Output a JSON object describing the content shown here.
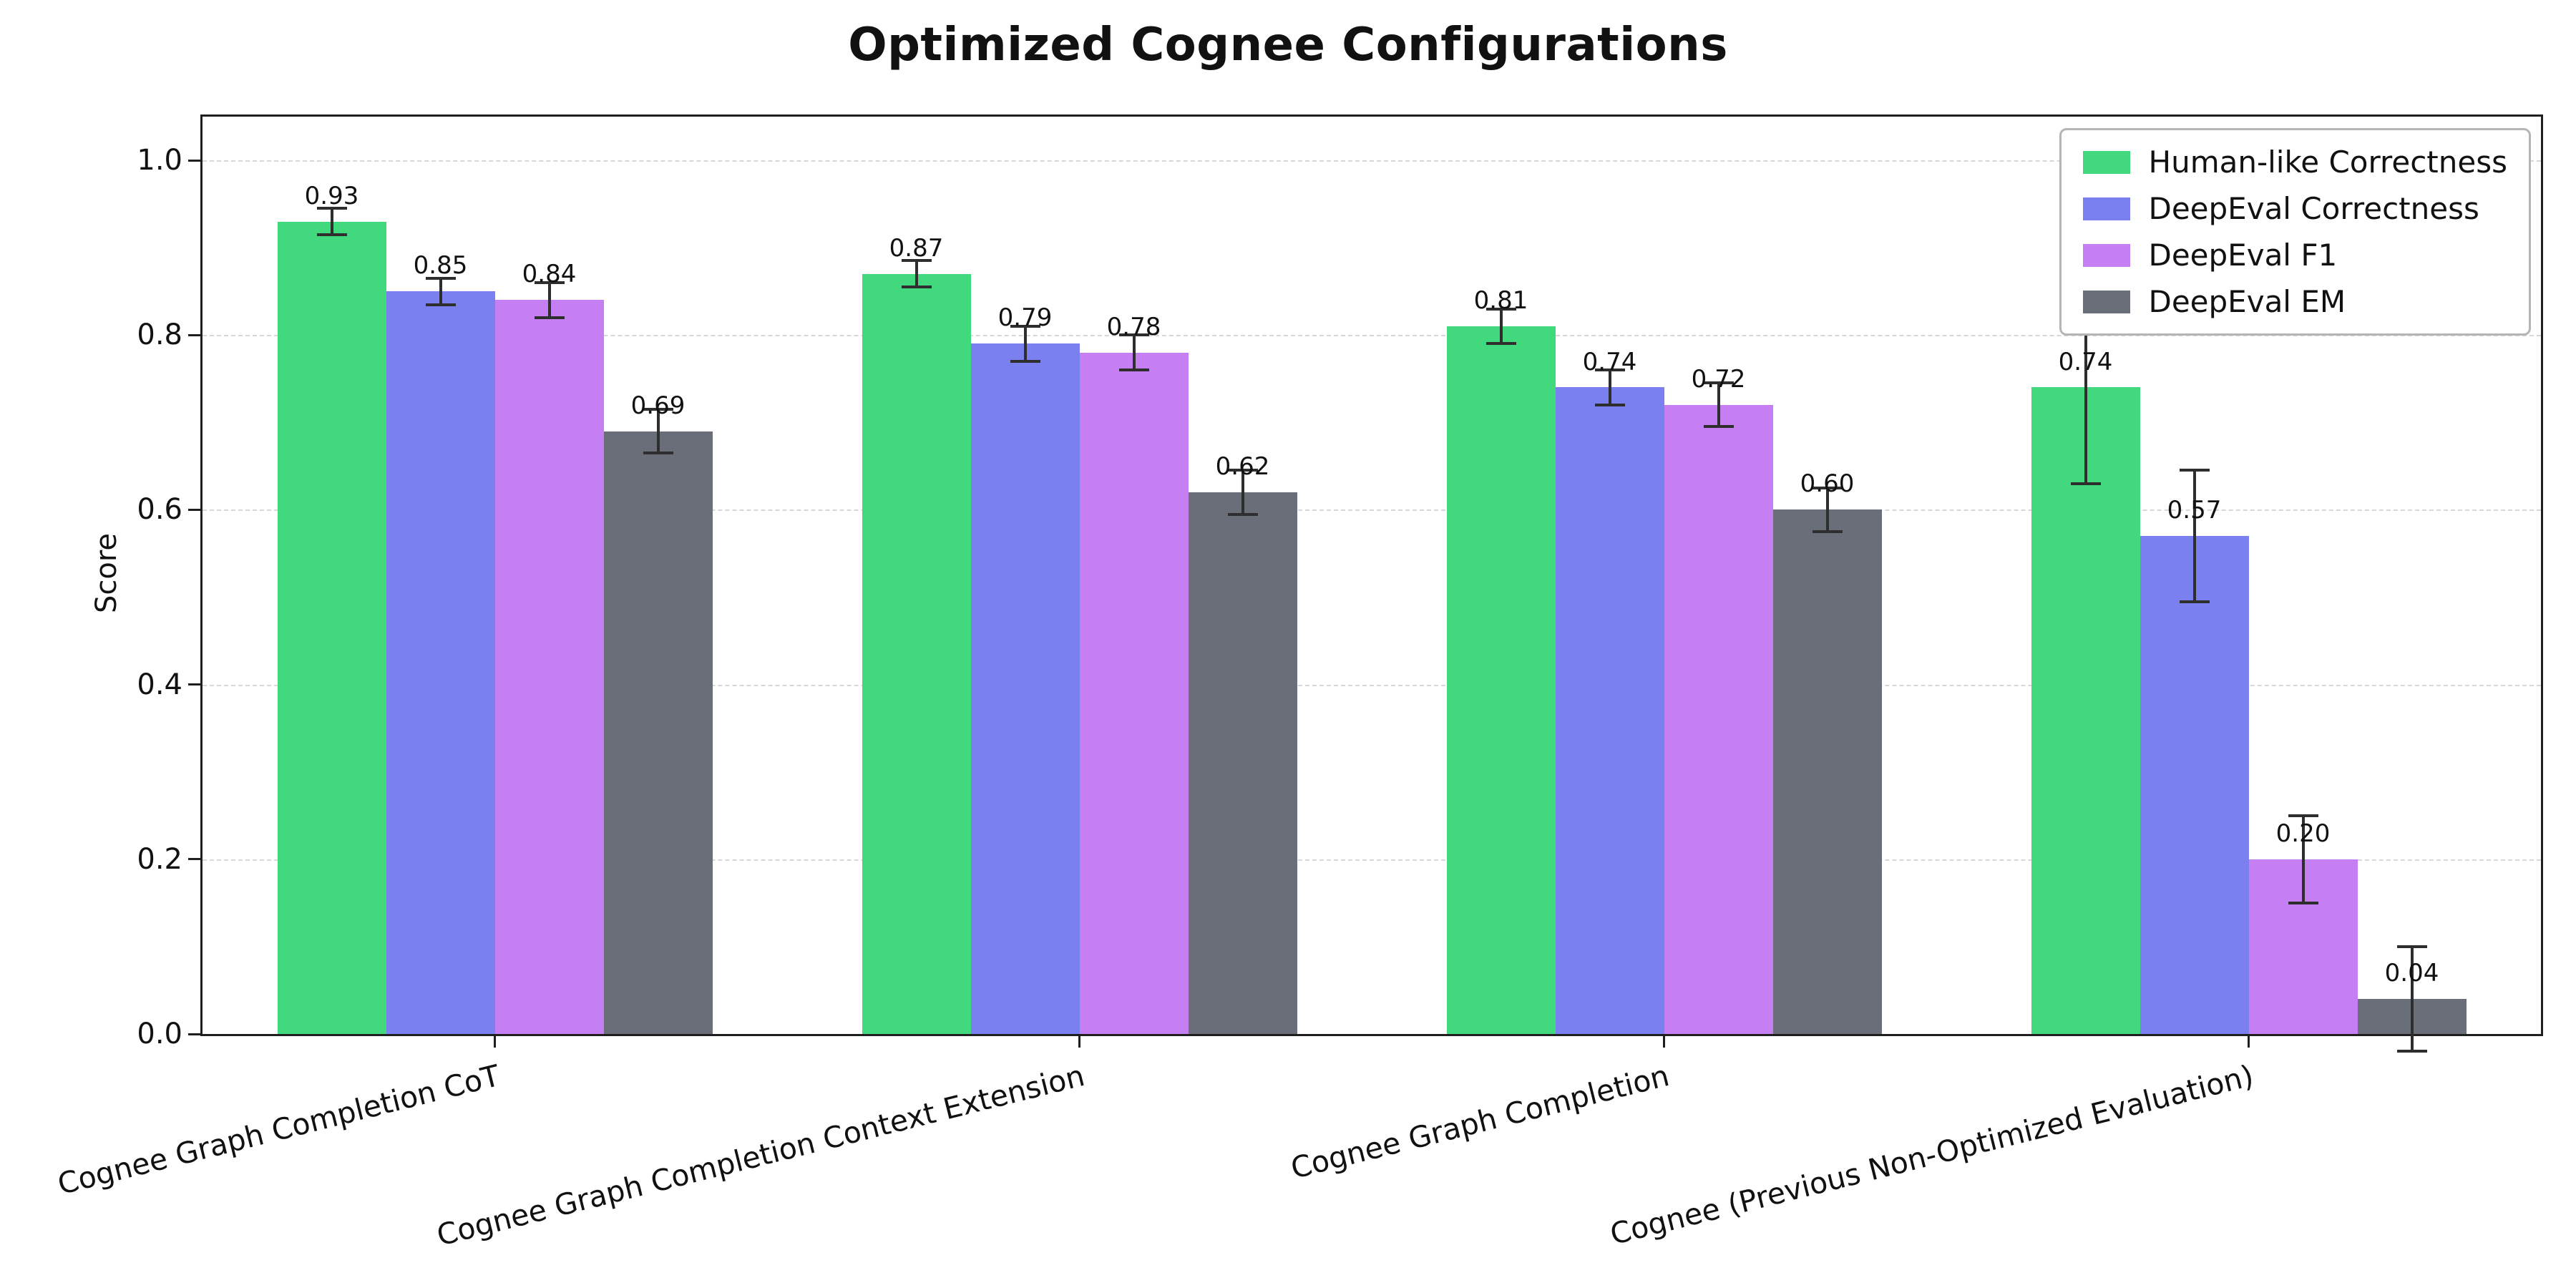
{
  "chart_data": {
    "type": "bar",
    "title": "Optimized Cognee Configurations",
    "ylabel": "Score",
    "xlabel": "",
    "ylim": [
      0,
      1.05
    ],
    "yticks": [
      0.0,
      0.2,
      0.4,
      0.6,
      0.8,
      1.0
    ],
    "grid": "dashed-horizontal",
    "legend_position": "upper-right",
    "error_bar_color": "#2e2e2e",
    "value_label_decimals": 2,
    "categories": [
      "Cognee Graph Completion CoT",
      "Cognee Graph Completion Context Extension",
      "Cognee Graph Completion",
      "Cognee (Previous Non-Optimized Evaluation)"
    ],
    "series": [
      {
        "name": "Human-like Correctness",
        "color": "#42d97e",
        "values": [
          0.93,
          0.87,
          0.81,
          0.74
        ],
        "errors": [
          0.015,
          0.015,
          0.02,
          0.11
        ]
      },
      {
        "name": "DeepEval Correctness",
        "color": "#7b80f0",
        "values": [
          0.85,
          0.79,
          0.74,
          0.57
        ],
        "errors": [
          0.015,
          0.02,
          0.02,
          0.075
        ]
      },
      {
        "name": "DeepEval F1",
        "color": "#c67ff2",
        "values": [
          0.84,
          0.78,
          0.72,
          0.2
        ],
        "errors": [
          0.02,
          0.02,
          0.025,
          0.05
        ]
      },
      {
        "name": "DeepEval EM",
        "color": "#6a6e78",
        "values": [
          0.69,
          0.62,
          0.6,
          0.04
        ],
        "errors": [
          0.025,
          0.025,
          0.025,
          0.06
        ]
      }
    ]
  }
}
